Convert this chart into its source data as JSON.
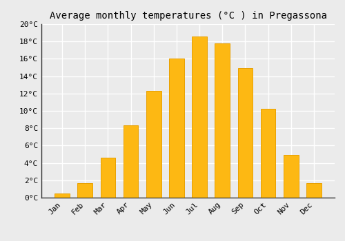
{
  "months": [
    "Jan",
    "Feb",
    "Mar",
    "Apr",
    "May",
    "Jun",
    "Jul",
    "Aug",
    "Sep",
    "Oct",
    "Nov",
    "Dec"
  ],
  "values": [
    0.5,
    1.7,
    4.6,
    8.3,
    12.3,
    16.0,
    18.6,
    17.8,
    14.9,
    10.2,
    4.9,
    1.7
  ],
  "bar_color": "#FDB813",
  "bar_edge_color": "#E8A000",
  "title": "Average monthly temperatures (°C ) in Pregassona",
  "title_fontsize": 10,
  "ylim": [
    0,
    20
  ],
  "yticks": [
    0,
    2,
    4,
    6,
    8,
    10,
    12,
    14,
    16,
    18,
    20
  ],
  "ytick_labels": [
    "0°C",
    "2°C",
    "4°C",
    "6°C",
    "8°C",
    "10°C",
    "12°C",
    "14°C",
    "16°C",
    "18°C",
    "20°C"
  ],
  "background_color": "#ebebeb",
  "grid_color": "#ffffff",
  "tick_fontsize": 8,
  "font_family": "monospace",
  "bar_width": 0.65
}
